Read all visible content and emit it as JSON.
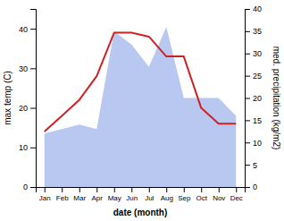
{
  "chart_data": {
    "type": "line",
    "categories": [
      "Jan",
      "Feb",
      "Mar",
      "Apr",
      "May",
      "Jun",
      "Jul",
      "Aug",
      "Sep",
      "Oct",
      "Nov",
      "Dec"
    ],
    "series": [
      {
        "type": "area",
        "axis": "y2",
        "color": "#b8c8f0",
        "values": [
          12,
          13,
          14,
          13,
          35,
          32,
          27,
          36,
          20,
          20,
          20,
          16
        ]
      },
      {
        "type": "line",
        "color": "#cc2222",
        "values": [
          14,
          18,
          22,
          28,
          39,
          39,
          38,
          33,
          33,
          20,
          16,
          16
        ]
      }
    ],
    "xlabel": "date (month)",
    "ylabel": "max temp (C)",
    "y2label": "med. precipitation (kg/m2)",
    "ylim": [
      0,
      45
    ],
    "yticks": [
      0,
      10,
      20,
      30,
      40
    ],
    "y2lim": [
      0,
      40
    ],
    "y2ticks": [
      0,
      5,
      10,
      15,
      20,
      25,
      30,
      35,
      40
    ],
    "grid": false
  }
}
